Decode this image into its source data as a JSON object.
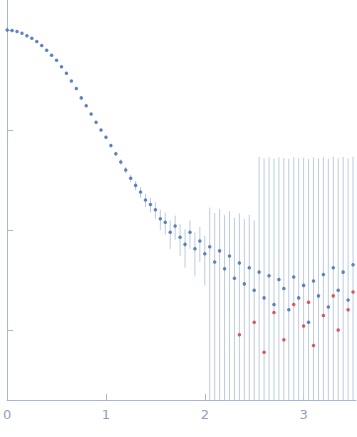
{
  "chart_data": {
    "type": "scatter",
    "log": "y",
    "grid": false,
    "tick_labels": "x",
    "xlim": [
      0,
      3.53
    ],
    "xticks": [
      0,
      1,
      2,
      3
    ],
    "ylim": [
      0.0002,
      2
    ],
    "yticks": [
      0.001,
      0.01,
      0.1,
      1
    ],
    "series": [
      {
        "color": "#3a67b8",
        "marker": "circle",
        "x": [
          0.0,
          0.05,
          0.1,
          0.15,
          0.2,
          0.25,
          0.3,
          0.35,
          0.4,
          0.45,
          0.5,
          0.55,
          0.6,
          0.65,
          0.7,
          0.75,
          0.8,
          0.85,
          0.9,
          0.95,
          1.0,
          1.05,
          1.1,
          1.15,
          1.2,
          1.25,
          1.3,
          1.35,
          1.4,
          1.45,
          1.5,
          1.55,
          1.6,
          1.65,
          1.7,
          1.75,
          1.8,
          1.85,
          1.9,
          1.95,
          2.0,
          2.05,
          2.1,
          2.15,
          2.2,
          2.25,
          2.3,
          2.35,
          2.4,
          2.45,
          2.5,
          2.55,
          2.6,
          2.65,
          2.7,
          2.75,
          2.8,
          2.85,
          2.9,
          2.95,
          3.0,
          3.05,
          3.1,
          3.15,
          3.2,
          3.25,
          3.3,
          3.35,
          3.4,
          3.45,
          3.5
        ],
        "values": [
          1.0,
          0.99,
          0.97,
          0.93,
          0.88,
          0.83,
          0.77,
          0.7,
          0.63,
          0.56,
          0.5,
          0.43,
          0.37,
          0.31,
          0.26,
          0.21,
          0.175,
          0.145,
          0.12,
          0.1,
          0.085,
          0.07,
          0.058,
          0.048,
          0.04,
          0.033,
          0.028,
          0.024,
          0.02,
          0.018,
          0.016,
          0.013,
          0.012,
          0.0095,
          0.011,
          0.0085,
          0.0072,
          0.0095,
          0.0065,
          0.0078,
          0.0058,
          0.0068,
          0.0048,
          0.0062,
          0.0041,
          0.0055,
          0.0033,
          0.0047,
          0.0029,
          0.0042,
          0.0025,
          0.0038,
          0.0021,
          0.0035,
          0.0018,
          0.0032,
          0.0026,
          0.0016,
          0.0034,
          0.0021,
          0.0028,
          0.0012,
          0.0031,
          0.0022,
          0.0036,
          0.0017,
          0.0042,
          0.0025,
          0.0038,
          0.002,
          0.0045
        ],
        "error": [
          0.01,
          0.01,
          0.01,
          0.01,
          0.01,
          0.01,
          0.01,
          0.01,
          0.01,
          0.01,
          0.008,
          0.007,
          0.006,
          0.005,
          0.005,
          0.004,
          0.004,
          0.003,
          0.003,
          0.003,
          0.003,
          0.003,
          0.003,
          0.003,
          0.003,
          0.003,
          0.003,
          0.003,
          0.003,
          0.003,
          0.003,
          0.003,
          0.003,
          0.003,
          0.003,
          0.003,
          0.003,
          0.003,
          0.003,
          0.003,
          0.003,
          0.01,
          0.01,
          0.01,
          0.01,
          0.01,
          0.01,
          0.01,
          0.01,
          0.01,
          0.01,
          0.05,
          0.05,
          0.05,
          0.05,
          0.05,
          0.05,
          0.05,
          0.05,
          0.05,
          0.05,
          0.05,
          0.05,
          0.05,
          0.05,
          0.05,
          0.05,
          0.05,
          0.05,
          0.05,
          0.05
        ]
      },
      {
        "color": "#e03030",
        "marker": "circle",
        "x": [
          2.35,
          2.5,
          2.6,
          2.7,
          2.8,
          2.9,
          3.0,
          3.05,
          3.1,
          3.2,
          3.3,
          3.35,
          3.45,
          3.5
        ],
        "values": [
          0.0009,
          0.0012,
          0.0006,
          0.0015,
          0.0008,
          0.0018,
          0.0011,
          0.0019,
          0.0007,
          0.0014,
          0.0022,
          0.001,
          0.0016,
          0.0024
        ]
      }
    ]
  }
}
